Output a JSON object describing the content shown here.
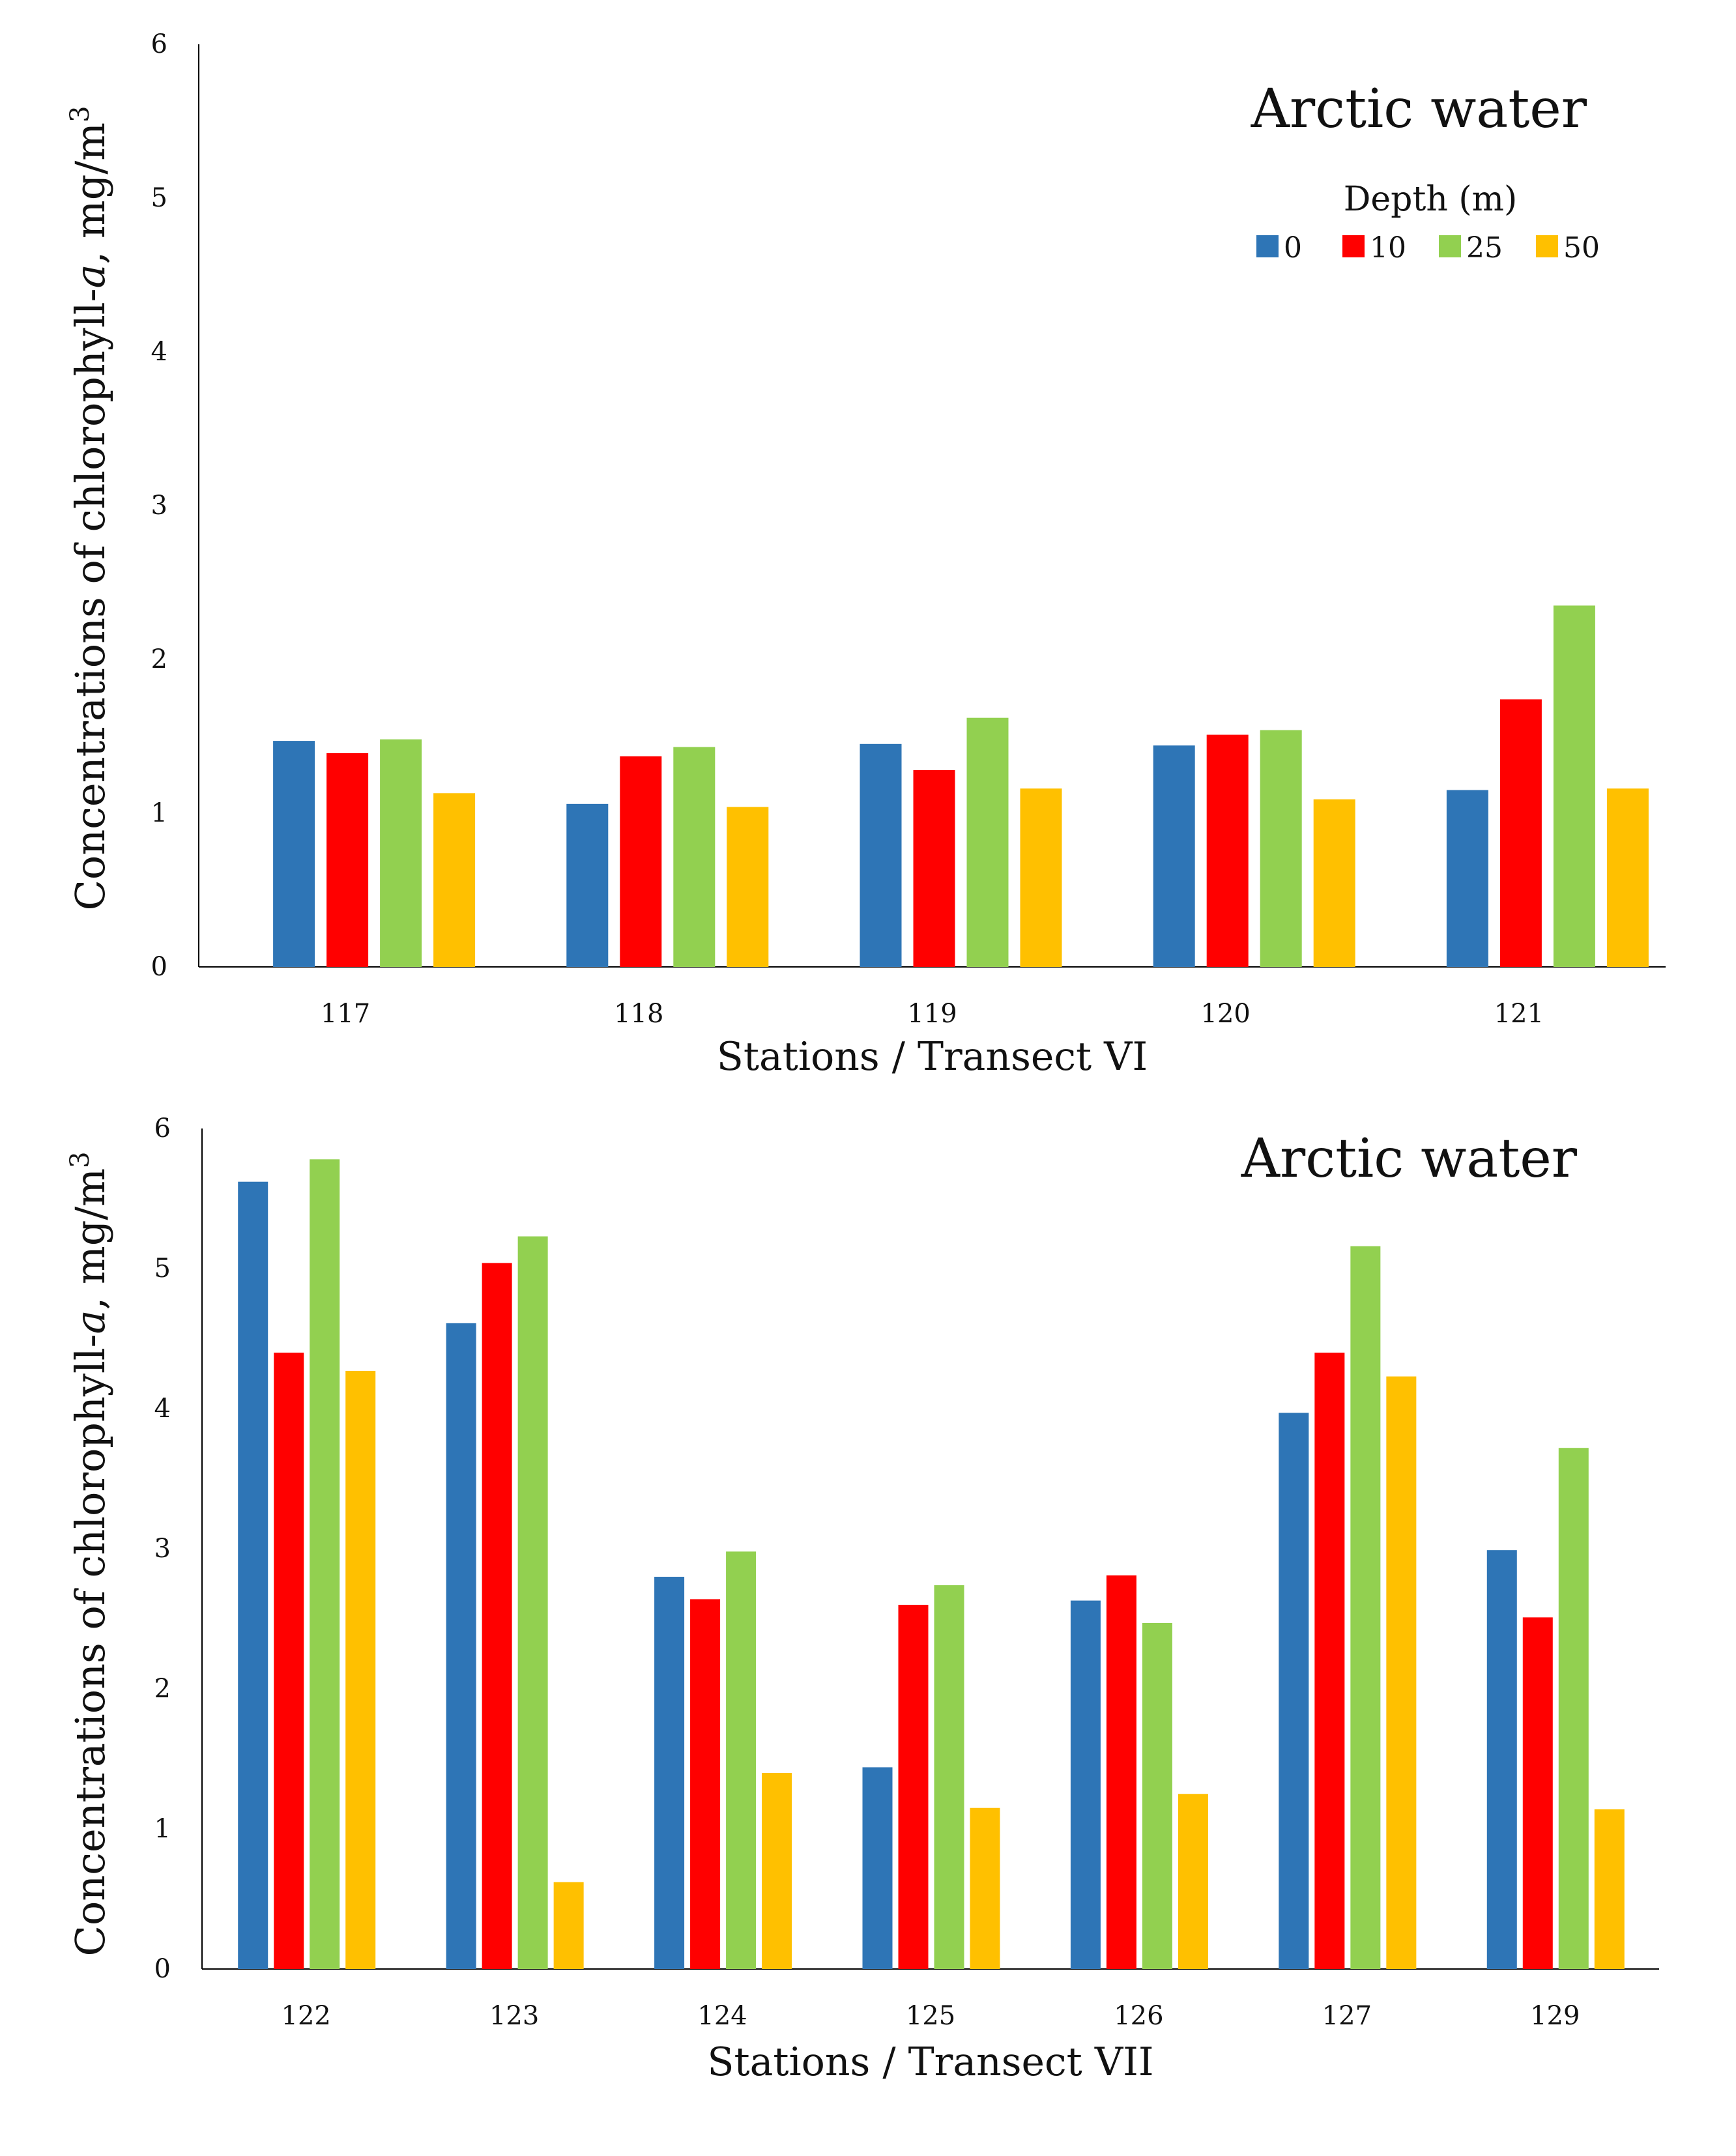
{
  "chart_data": [
    {
      "type": "bar",
      "title": "Arctic water",
      "xlabel": "Stations / Transect VI",
      "ylabel_prefix": "Concentrations of chlorophyll-",
      "ylabel_italic": "a",
      "ylabel_suffix": ", mg/m",
      "ylabel_sup": "3",
      "ylim": [
        0,
        6
      ],
      "yticks": [
        "0",
        "1",
        "2",
        "3",
        "4",
        "5",
        "6"
      ],
      "legend": {
        "title": "Depth (m)",
        "placement": "top-right"
      },
      "categories": [
        "117",
        "118",
        "119",
        "120",
        "121"
      ],
      "series": [
        {
          "name": "0",
          "color": "#2E75B6",
          "values": [
            1.47,
            1.06,
            1.45,
            1.44,
            1.15
          ]
        },
        {
          "name": "10",
          "color": "#FF0000",
          "values": [
            1.39,
            1.37,
            1.28,
            1.51,
            1.74
          ]
        },
        {
          "name": "25",
          "color": "#92D050",
          "values": [
            1.48,
            1.43,
            1.62,
            1.54,
            2.35
          ]
        },
        {
          "name": "50",
          "color": "#FFC000",
          "values": [
            1.13,
            1.04,
            1.16,
            1.09,
            1.16
          ]
        }
      ]
    },
    {
      "type": "bar",
      "title": "Arctic water",
      "xlabel": "Stations / Transect VII",
      "ylabel_prefix": "Concentrations of chlorophyll-",
      "ylabel_italic": "a",
      "ylabel_suffix": ", mg/m",
      "ylabel_sup": "3",
      "ylim": [
        0,
        6
      ],
      "yticks": [
        "0",
        "1",
        "2",
        "3",
        "4",
        "5",
        "6"
      ],
      "categories": [
        "122",
        "123",
        "124",
        "125",
        "126",
        "127",
        "129"
      ],
      "series": [
        {
          "name": "0",
          "color": "#2E75B6",
          "values": [
            5.62,
            4.61,
            2.8,
            1.44,
            2.63,
            3.97,
            2.99
          ]
        },
        {
          "name": "10",
          "color": "#FF0000",
          "values": [
            4.4,
            5.04,
            2.64,
            2.6,
            2.81,
            4.4,
            2.51
          ]
        },
        {
          "name": "25",
          "color": "#92D050",
          "values": [
            5.78,
            5.23,
            2.98,
            2.74,
            2.47,
            5.16,
            3.72
          ]
        },
        {
          "name": "50",
          "color": "#FFC000",
          "values": [
            4.27,
            0.62,
            1.4,
            1.15,
            1.25,
            4.23,
            1.14
          ]
        }
      ]
    }
  ]
}
